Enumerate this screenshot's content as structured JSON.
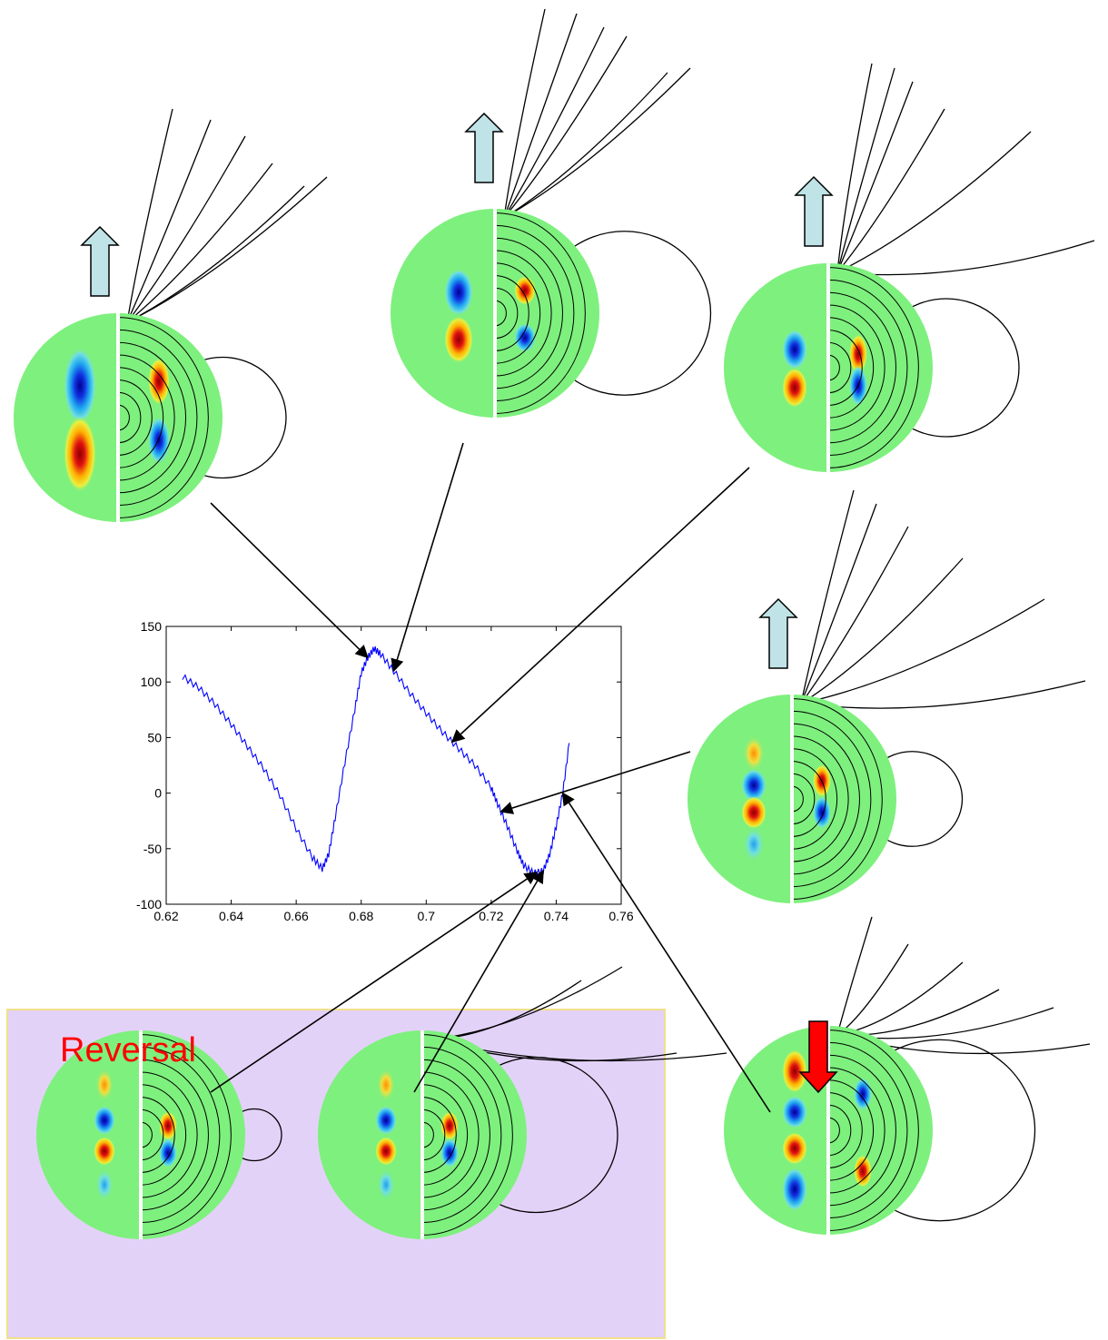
{
  "colors": {
    "panel_bg": "#E3D2F8",
    "panel_border": "#F2E08A",
    "reversal_text": "#FF0000",
    "series_line": "#0000FF",
    "up_arrow": "#BFE3E6",
    "down_arrow": "#FF0000",
    "field_bg": "#7EF07E",
    "field_lines": "#000000"
  },
  "labels": {
    "reversal": "Reversal"
  },
  "snapshots": [
    {
      "id": "snapshot-1",
      "polarity_arrow": "up",
      "points_to_x": 0.682
    },
    {
      "id": "snapshot-2",
      "polarity_arrow": "up",
      "points_to_x": 0.69
    },
    {
      "id": "snapshot-3",
      "polarity_arrow": "up",
      "points_to_x": 0.708
    },
    {
      "id": "snapshot-4",
      "polarity_arrow": "up",
      "points_to_x": 0.723
    },
    {
      "id": "snapshot-5",
      "polarity_arrow": "none",
      "points_to_x": 0.734
    },
    {
      "id": "snapshot-6",
      "polarity_arrow": "none",
      "points_to_x": 0.736
    },
    {
      "id": "snapshot-7",
      "polarity_arrow": "down",
      "points_to_x": 0.742
    }
  ],
  "chart_data": {
    "type": "line",
    "title": "",
    "xlabel": "",
    "ylabel": "",
    "xlim": [
      0.62,
      0.76
    ],
    "ylim": [
      -100,
      150
    ],
    "xticks": [
      "0.62",
      "0.64",
      "0.66",
      "0.68",
      "0.7",
      "0.72",
      "0.74",
      "0.76"
    ],
    "yticks": [
      "150",
      "100",
      "50",
      "0",
      "-50",
      "-100"
    ],
    "grid": false,
    "series": [
      {
        "x": [
          0.625,
          0.63,
          0.635,
          0.64,
          0.645,
          0.65,
          0.655,
          0.66,
          0.665,
          0.668,
          0.67,
          0.672,
          0.675,
          0.678,
          0.68,
          0.682,
          0.684,
          0.686,
          0.69,
          0.695,
          0.7,
          0.705,
          0.71,
          0.715,
          0.72,
          0.722,
          0.725,
          0.728,
          0.73,
          0.733,
          0.736,
          0.738,
          0.74,
          0.742,
          0.744
        ],
        "y": [
          105,
          95,
          80,
          62,
          42,
          22,
          -2,
          -32,
          -58,
          -68,
          -55,
          -22,
          28,
          75,
          108,
          122,
          130,
          125,
          110,
          90,
          72,
          55,
          40,
          25,
          5,
          -10,
          -30,
          -52,
          -65,
          -72,
          -70,
          -55,
          -30,
          0,
          45
        ]
      }
    ]
  }
}
